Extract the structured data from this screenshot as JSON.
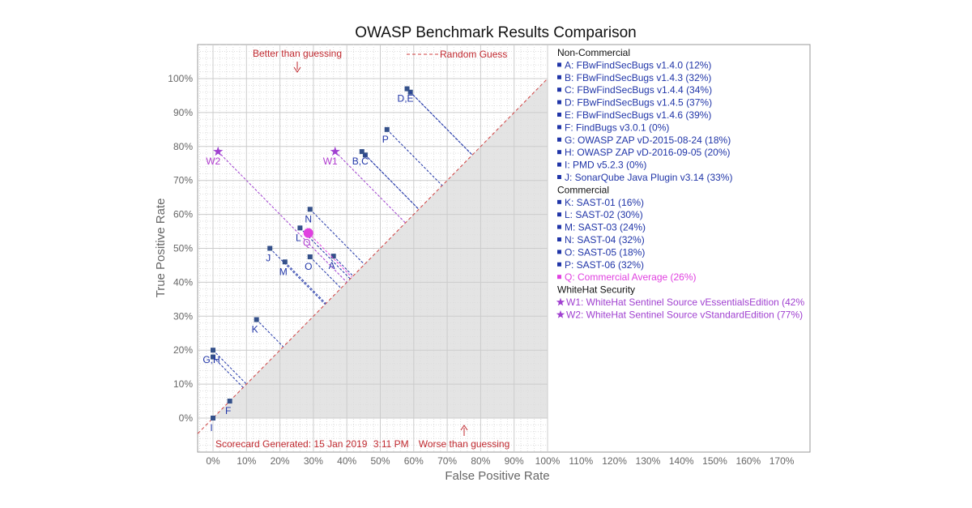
{
  "chart_data": {
    "type": "scatter",
    "title": "OWASP Benchmark Results Comparison",
    "xlabel": "False Positive Rate",
    "ylabel": "True Positive Rate",
    "xlim": [
      -5,
      178
    ],
    "ylim": [
      -10,
      110
    ],
    "grid": true,
    "x_ticks": [
      "0%",
      "10%",
      "20%",
      "30%",
      "40%",
      "50%",
      "60%",
      "70%",
      "80%",
      "90%",
      "100%",
      "110%",
      "120%",
      "130%",
      "140%",
      "150%",
      "160%",
      "170%"
    ],
    "y_ticks": [
      "0%",
      "10%",
      "20%",
      "30%",
      "40%",
      "50%",
      "60%",
      "70%",
      "80%",
      "90%",
      "100%"
    ],
    "legend_placement": "right",
    "random_guess_label": "Random Guess",
    "annotations": {
      "better": "Better than guessing",
      "worse": "Worse than guessing",
      "generated_prefix": "Scorecard Generated:",
      "generated_date": "15 Jan 2019",
      "generated_time": "3:11 PM"
    },
    "colors": {
      "tool": "#2035a8",
      "average": "#e040e0",
      "whitehat": "#a040d0",
      "guess": "#d04040",
      "shade": "#e4e4e4"
    },
    "points": [
      {
        "id": "A",
        "label": "A",
        "fpr": 36,
        "tpr": 47.7,
        "group": "tool"
      },
      {
        "id": "B",
        "label": "",
        "fpr": 45.5,
        "tpr": 77.5,
        "group": "tool"
      },
      {
        "id": "C",
        "label": "B,C",
        "fpr": 44.5,
        "tpr": 78.5,
        "group": "tool"
      },
      {
        "id": "D",
        "label": "",
        "fpr": 59,
        "tpr": 96,
        "group": "tool"
      },
      {
        "id": "E",
        "label": "D,E",
        "fpr": 58,
        "tpr": 97,
        "group": "tool"
      },
      {
        "id": "F",
        "label": "F",
        "fpr": 5,
        "tpr": 5,
        "group": "tool"
      },
      {
        "id": "G",
        "label": "",
        "fpr": 0,
        "tpr": 18,
        "group": "tool"
      },
      {
        "id": "H",
        "label": "G,H",
        "fpr": 0,
        "tpr": 20,
        "group": "tool"
      },
      {
        "id": "I",
        "label": "I",
        "fpr": 0,
        "tpr": 0,
        "group": "tool"
      },
      {
        "id": "J",
        "label": "J",
        "fpr": 17,
        "tpr": 50,
        "group": "tool"
      },
      {
        "id": "K",
        "label": "K",
        "fpr": 13,
        "tpr": 29,
        "group": "tool"
      },
      {
        "id": "L",
        "label": "L",
        "fpr": 26,
        "tpr": 56,
        "group": "tool"
      },
      {
        "id": "M",
        "label": "M",
        "fpr": 21.5,
        "tpr": 46,
        "group": "tool"
      },
      {
        "id": "N",
        "label": "N",
        "fpr": 29,
        "tpr": 61.5,
        "group": "tool"
      },
      {
        "id": "O",
        "label": "O",
        "fpr": 29,
        "tpr": 47.5,
        "group": "tool"
      },
      {
        "id": "P",
        "label": "P",
        "fpr": 52,
        "tpr": 85,
        "group": "tool"
      },
      {
        "id": "Q",
        "label": "Q",
        "fpr": 28.5,
        "tpr": 54.5,
        "group": "average"
      },
      {
        "id": "W1",
        "label": "W1",
        "fpr": 36.5,
        "tpr": 78.5,
        "group": "whitehat"
      },
      {
        "id": "W2",
        "label": "W2",
        "fpr": 1.5,
        "tpr": 78.5,
        "group": "whitehat"
      }
    ],
    "legend": [
      {
        "type": "header",
        "text": "Non-Commercial"
      },
      {
        "type": "tool",
        "text": "A: FBwFindSecBugs v1.4.0 (12%)"
      },
      {
        "type": "tool",
        "text": "B: FBwFindSecBugs v1.4.3 (32%)"
      },
      {
        "type": "tool",
        "text": "C: FBwFindSecBugs v1.4.4 (34%)"
      },
      {
        "type": "tool",
        "text": "D: FBwFindSecBugs v1.4.5 (37%)"
      },
      {
        "type": "tool",
        "text": "E: FBwFindSecBugs v1.4.6 (39%)"
      },
      {
        "type": "tool",
        "text": "F: FindBugs v3.0.1 (0%)"
      },
      {
        "type": "tool",
        "text": "G: OWASP ZAP vD-2015-08-24 (18%)"
      },
      {
        "type": "tool",
        "text": "H: OWASP ZAP vD-2016-09-05 (20%)"
      },
      {
        "type": "tool",
        "text": "I:  PMD v5.2.3 (0%)"
      },
      {
        "type": "tool",
        "text": "J: SonarQube Java Plugin v3.14 (33%)"
      },
      {
        "type": "header",
        "text": "Commercial"
      },
      {
        "type": "tool",
        "text": "K: SAST-01 (16%)"
      },
      {
        "type": "tool",
        "text": "L: SAST-02 (30%)"
      },
      {
        "type": "tool",
        "text": "M: SAST-03 (24%)"
      },
      {
        "type": "tool",
        "text": "N: SAST-04 (32%)"
      },
      {
        "type": "tool",
        "text": "O: SAST-05 (18%)"
      },
      {
        "type": "tool",
        "text": "P: SAST-06 (32%)"
      },
      {
        "type": "average",
        "text": "Q: Commercial Average (26%)"
      },
      {
        "type": "header",
        "text": "WhiteHat Security"
      },
      {
        "type": "whitehat",
        "text": "W1: WhiteHat Sentinel Source vEssentialsEdition (42%"
      },
      {
        "type": "whitehat",
        "text": "W2:  WhiteHat Sentinel Source vStandardEdition (77%)"
      }
    ]
  }
}
